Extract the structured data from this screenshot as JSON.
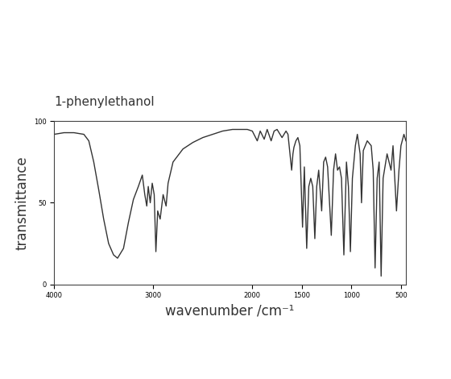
{
  "chart_data": {
    "type": "line",
    "title": "1-phenylethanol",
    "x_label": "wavenumber /cm⁻¹",
    "y_label": "transmittance",
    "color": "#333333",
    "grid": false,
    "x": [
      4000,
      3900,
      3800,
      3700,
      3650,
      3600,
      3550,
      3500,
      3450,
      3400,
      3360,
      3300,
      3250,
      3200,
      3150,
      3110,
      3085,
      3065,
      3050,
      3030,
      3010,
      2990,
      2973,
      2955,
      2930,
      2900,
      2870,
      2850,
      2800,
      2700,
      2600,
      2500,
      2400,
      2300,
      2200,
      2100,
      2050,
      2000,
      1950,
      1920,
      1880,
      1850,
      1810,
      1780,
      1750,
      1700,
      1660,
      1640,
      1603,
      1590,
      1580,
      1560,
      1540,
      1520,
      1493,
      1475,
      1451,
      1430,
      1410,
      1390,
      1369,
      1350,
      1330,
      1300,
      1280,
      1260,
      1240,
      1203,
      1180,
      1160,
      1140,
      1120,
      1100,
      1076,
      1050,
      1030,
      1010,
      990,
      960,
      940,
      912,
      898,
      880,
      860,
      840,
      800,
      780,
      761,
      740,
      720,
      700,
      680,
      640,
      600,
      580,
      545,
      520,
      500,
      470,
      450
    ],
    "values": [
      92,
      93,
      93,
      92,
      88,
      75,
      58,
      40,
      25,
      18,
      16,
      22,
      38,
      52,
      60,
      67,
      55,
      48,
      60,
      50,
      62,
      55,
      20,
      45,
      40,
      55,
      48,
      62,
      75,
      83,
      87,
      90,
      92,
      94,
      95,
      95,
      95,
      94,
      88,
      94,
      89,
      95,
      88,
      94,
      95,
      90,
      94,
      92,
      70,
      80,
      84,
      88,
      90,
      85,
      35,
      72,
      22,
      60,
      65,
      60,
      28,
      60,
      70,
      45,
      75,
      78,
      72,
      30,
      70,
      80,
      70,
      72,
      65,
      18,
      75,
      60,
      20,
      65,
      85,
      92,
      80,
      50,
      82,
      85,
      88,
      85,
      70,
      10,
      65,
      75,
      5,
      65,
      80,
      70,
      85,
      45,
      70,
      85,
      92,
      88
    ],
    "xlim": [
      4000,
      450
    ],
    "xticks": [
      4000,
      3000,
      2000,
      1500,
      1000,
      500
    ],
    "ylim": [
      0,
      100
    ],
    "yticks": [
      0,
      50,
      100
    ]
  }
}
